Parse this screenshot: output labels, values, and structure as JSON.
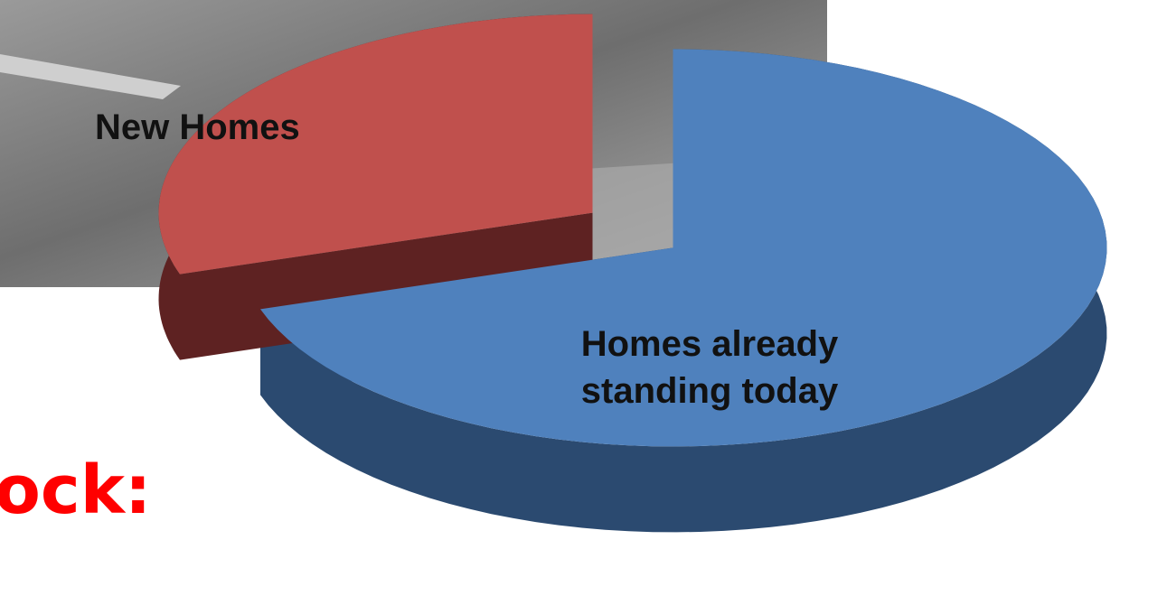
{
  "chart_data": {
    "type": "pie3d",
    "categories": [
      "Homes already standing today",
      "New Homes"
    ],
    "values": [
      70,
      30
    ],
    "colors": [
      "#4f81bd",
      "#c0504d"
    ],
    "side_colors": [
      "#2b4a70",
      "#5e2222"
    ]
  },
  "slide_text": "ock:"
}
